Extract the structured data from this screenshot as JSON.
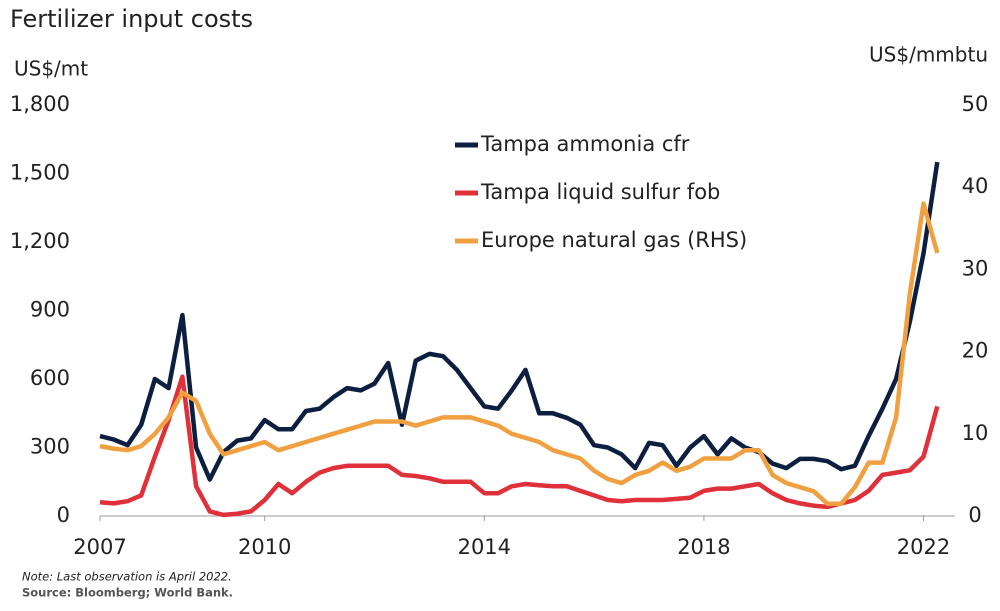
{
  "chart_data": {
    "type": "line",
    "title": "Fertilizer input costs",
    "y_label": "US$/mt",
    "y2_label": "US$/mmbtu",
    "note": "Note: Last observation is April 2022.",
    "source": "Source: Bloomberg; World Bank.",
    "x": [
      2007,
      2007.25,
      2007.5,
      2007.75,
      2008,
      2008.25,
      2008.5,
      2008.75,
      2009,
      2009.25,
      2009.5,
      2009.75,
      2010,
      2010.25,
      2010.5,
      2010.75,
      2011,
      2011.25,
      2011.5,
      2011.75,
      2012,
      2012.25,
      2012.5,
      2012.75,
      2013,
      2013.25,
      2013.5,
      2013.75,
      2014,
      2014.25,
      2014.5,
      2014.75,
      2015,
      2015.25,
      2015.5,
      2015.75,
      2016,
      2016.25,
      2016.5,
      2016.75,
      2017,
      2017.25,
      2017.5,
      2017.75,
      2018,
      2018.25,
      2018.5,
      2018.75,
      2019,
      2019.25,
      2019.5,
      2019.75,
      2020,
      2020.25,
      2020.5,
      2020.75,
      2021,
      2021.25,
      2021.5,
      2021.75,
      2022,
      2022.25
    ],
    "xlim": [
      2007,
      2022.3
    ],
    "xticks": [
      2007,
      2010,
      2014,
      2018,
      2022
    ],
    "ylim": [
      0,
      1800
    ],
    "yticks": [
      0,
      300,
      600,
      900,
      {
        "value": 1200,
        "label": "1,200"
      },
      {
        "value": 1500,
        "label": "1,500"
      },
      {
        "value": 1800,
        "label": "1,800"
      }
    ],
    "y2lim": [
      0,
      50
    ],
    "y2ticks": [
      0,
      10,
      20,
      30,
      40,
      50
    ],
    "grid": false,
    "series": [
      {
        "name": "Tampa ammonia cfr",
        "color": "#0d1f40",
        "values": [
          350,
          335,
          310,
          400,
          600,
          560,
          880,
          300,
          160,
          280,
          330,
          340,
          420,
          380,
          380,
          460,
          470,
          520,
          560,
          550,
          580,
          670,
          400,
          680,
          710,
          700,
          640,
          560,
          480,
          470,
          550,
          640,
          450,
          450,
          430,
          400,
          310,
          300,
          270,
          210,
          320,
          310,
          220,
          300,
          350,
          270,
          340,
          300,
          280,
          230,
          210,
          250,
          250,
          240,
          205,
          220,
          350,
          470,
          600,
          850,
          1150,
          1550
        ]
      },
      {
        "name": "Tampa liquid sulfur fob",
        "color": "#e0303a",
        "values": [
          60,
          55,
          65,
          90,
          260,
          420,
          610,
          130,
          20,
          5,
          10,
          20,
          70,
          140,
          100,
          150,
          190,
          210,
          220,
          220,
          220,
          220,
          180,
          175,
          165,
          150,
          150,
          150,
          100,
          100,
          130,
          140,
          135,
          130,
          130,
          110,
          90,
          70,
          65,
          70,
          70,
          70,
          75,
          80,
          110,
          120,
          120,
          130,
          140,
          100,
          70,
          55,
          45,
          40,
          55,
          70,
          110,
          180,
          190,
          200,
          260,
          480
        ]
      },
      {
        "name": "Europe natural gas (RHS)",
        "color": "#f0a040",
        "axis": "y2",
        "values": [
          8.5,
          8.2,
          8,
          8.5,
          10,
          12,
          15,
          14,
          10,
          7.5,
          8,
          8.5,
          9,
          8,
          8.5,
          9,
          9.5,
          10,
          10.5,
          11,
          11.5,
          11.5,
          11.5,
          11,
          11.5,
          12,
          12,
          12,
          11.5,
          11,
          10,
          9.5,
          9,
          8,
          7.5,
          7,
          5.5,
          4.5,
          4,
          5,
          5.5,
          6.5,
          5.5,
          6,
          7,
          7,
          7,
          8,
          8,
          5,
          4,
          3.5,
          3,
          1.5,
          1.5,
          3.5,
          6.5,
          6.5,
          12,
          27,
          38,
          32
        ]
      }
    ]
  }
}
